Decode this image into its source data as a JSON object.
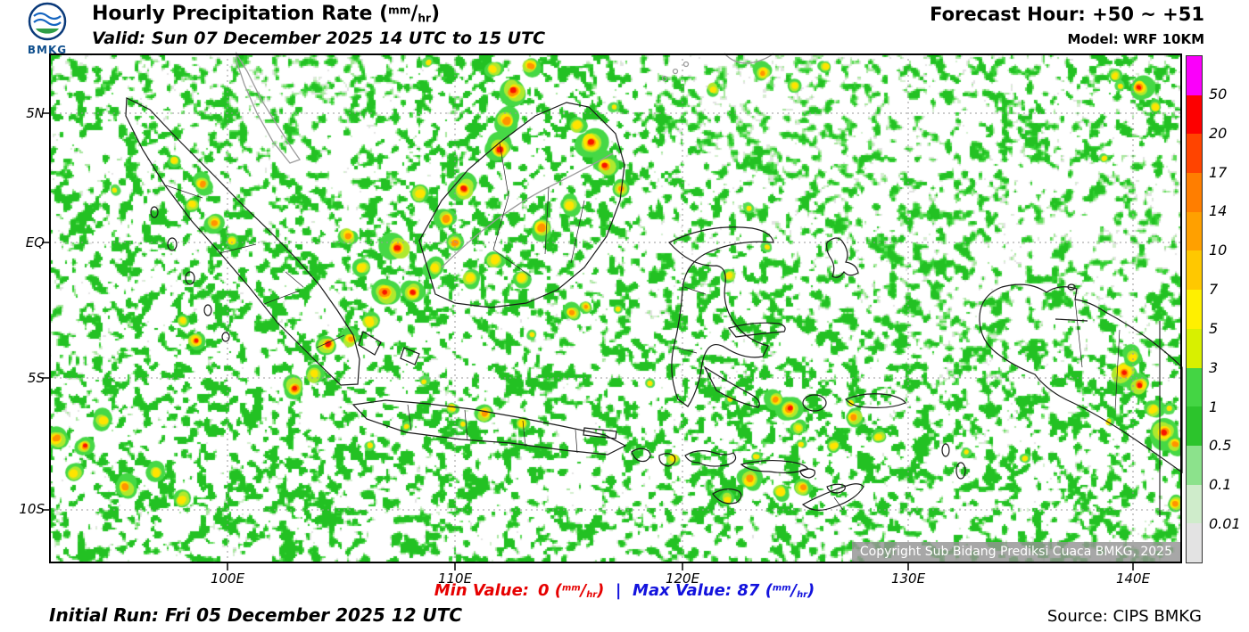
{
  "units": {
    "open": "(",
    "sup": "mm",
    "slash": "/",
    "sub": "hr",
    "close": ")"
  },
  "header": {
    "logo_label": "BMKG",
    "title_prefix": "Hourly Precipitation Rate ",
    "valid": "Valid: Sun 07 December 2025 14 UTC to 15 UTC",
    "forecast_hour": "Forecast Hour: +50 ~ +51",
    "model": "Model: WRF 10KM"
  },
  "axes": {
    "lat": [
      "5N",
      "EQ",
      "5S",
      "10S"
    ],
    "lon": [
      "100E",
      "110E",
      "120E",
      "130E",
      "140E"
    ]
  },
  "colorbar": {
    "labels": [
      "50",
      "20",
      "17",
      "14",
      "10",
      "7",
      "5",
      "3",
      "1",
      "0.5",
      "0.1",
      "0.01"
    ],
    "colors": [
      "#fa00fa",
      "#fd0000",
      "#ff4400",
      "#ff7e00",
      "#ffa000",
      "#ffc800",
      "#fff000",
      "#d8f000",
      "#44d544",
      "#2cc42c",
      "#8ce28c",
      "#cfeccb",
      "#e3e3e3"
    ]
  },
  "overlay": {
    "copyright": "Copyright Sub Bidang Prediksi Cuaca BMKG, 2025"
  },
  "footer": {
    "min_label": "Min Value:",
    "min_value": "0",
    "separator": "|",
    "max_label": "Max Value:",
    "max_value": "87",
    "initial_run": "Initial Run: Fri 05 December 2025 12 UTC",
    "source": "Source: CIPS BMKG",
    "min_color": "#e60000",
    "max_color": "#1212dd"
  }
}
